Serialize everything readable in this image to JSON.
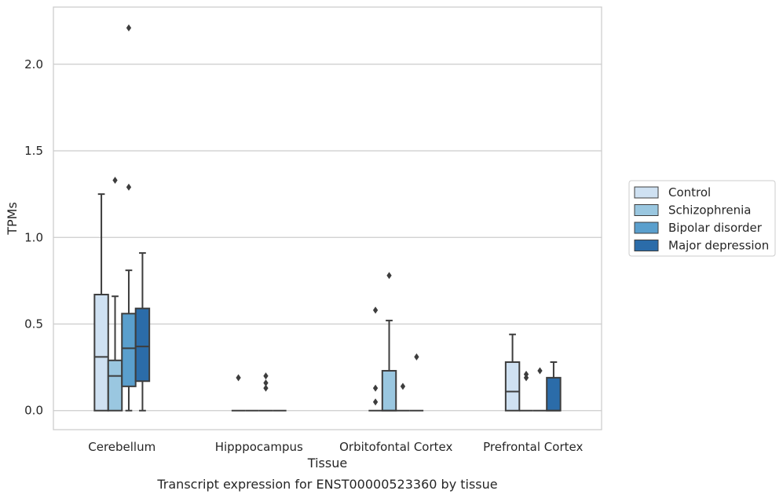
{
  "caption": "Transcript expression for ENST00000523360 by tissue",
  "chart_data": {
    "type": "boxplot",
    "xlabel": "Tissue",
    "ylabel": "TPMs",
    "ylim": [
      -0.11,
      2.33
    ],
    "yticks": [
      0.0,
      0.5,
      1.0,
      1.5,
      2.0
    ],
    "ytick_labels": [
      "0.0",
      "0.5",
      "1.0",
      "1.5",
      "2.0"
    ],
    "grid": "horizontal",
    "legend_position": "right",
    "categories": [
      "Cerebellum",
      "Hipppocampus",
      "Orbitofontal Cortex",
      "Prefrontal Cortex"
    ],
    "series": [
      {
        "name": "Control",
        "color": "#cfe1f2",
        "boxes": [
          {
            "whislo": 0.0,
            "q1": 0.0,
            "med": 0.31,
            "q3": 0.67,
            "whishi": 1.25,
            "fliers": []
          },
          {
            "whislo": 0.0,
            "q1": 0.0,
            "med": 0.0,
            "q3": 0.0,
            "whishi": 0.0,
            "fliers": [
              0.19
            ]
          },
          {
            "whislo": 0.0,
            "q1": 0.0,
            "med": 0.0,
            "q3": 0.0,
            "whishi": 0.0,
            "fliers": [
              0.58,
              0.13,
              0.05
            ]
          },
          {
            "whislo": 0.0,
            "q1": 0.0,
            "med": 0.11,
            "q3": 0.28,
            "whishi": 0.44,
            "fliers": []
          }
        ]
      },
      {
        "name": "Schizophrenia",
        "color": "#9ac7e0",
        "boxes": [
          {
            "whislo": 0.0,
            "q1": 0.0,
            "med": 0.2,
            "q3": 0.29,
            "whishi": 0.66,
            "fliers": [
              1.33
            ]
          },
          {
            "whislo": 0.0,
            "q1": 0.0,
            "med": 0.0,
            "q3": 0.0,
            "whishi": 0.0,
            "fliers": []
          },
          {
            "whislo": 0.0,
            "q1": 0.0,
            "med": 0.0,
            "q3": 0.23,
            "whishi": 0.52,
            "fliers": [
              0.78
            ]
          },
          {
            "whislo": 0.0,
            "q1": 0.0,
            "med": 0.0,
            "q3": 0.0,
            "whishi": 0.0,
            "fliers": [
              0.21,
              0.19
            ]
          }
        ]
      },
      {
        "name": "Bipolar disorder",
        "color": "#5a9fcd",
        "boxes": [
          {
            "whislo": 0.0,
            "q1": 0.14,
            "med": 0.36,
            "q3": 0.56,
            "whishi": 0.81,
            "fliers": [
              2.21,
              1.29
            ]
          },
          {
            "whislo": 0.0,
            "q1": 0.0,
            "med": 0.0,
            "q3": 0.0,
            "whishi": 0.0,
            "fliers": [
              0.2,
              0.16,
              0.13
            ]
          },
          {
            "whislo": 0.0,
            "q1": 0.0,
            "med": 0.0,
            "q3": 0.0,
            "whishi": 0.0,
            "fliers": [
              0.14
            ]
          },
          {
            "whislo": 0.0,
            "q1": 0.0,
            "med": 0.0,
            "q3": 0.0,
            "whishi": 0.0,
            "fliers": [
              0.23
            ]
          }
        ]
      },
      {
        "name": "Major depression",
        "color": "#2b6ca9",
        "boxes": [
          {
            "whislo": 0.0,
            "q1": 0.17,
            "med": 0.37,
            "q3": 0.59,
            "whishi": 0.91,
            "fliers": []
          },
          {
            "whislo": 0.0,
            "q1": 0.0,
            "med": 0.0,
            "q3": 0.0,
            "whishi": 0.0,
            "fliers": []
          },
          {
            "whislo": 0.0,
            "q1": 0.0,
            "med": 0.0,
            "q3": 0.0,
            "whishi": 0.0,
            "fliers": [
              0.31
            ]
          },
          {
            "whislo": 0.0,
            "q1": 0.0,
            "med": 0.0,
            "q3": 0.19,
            "whishi": 0.28,
            "fliers": []
          }
        ]
      }
    ]
  }
}
